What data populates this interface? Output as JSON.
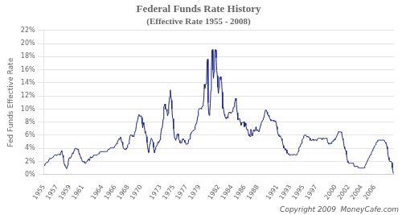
{
  "chart_data": {
    "type": "line",
    "title": "Federal Funds Rate History",
    "subtitle": "(Effective Rate 1955 - 2008)",
    "ylabel": "Fed Funds Effective Rate",
    "annotations": [
      "Copyright 2009  MoneyCafe.com"
    ],
    "color": "#1a237e",
    "grid": "y",
    "xlim": [
      1955,
      2009
    ],
    "xticks": [
      1955,
      1957,
      1959,
      1961,
      1964,
      1966,
      1968,
      1970,
      1973,
      1975,
      1977,
      1979,
      1982,
      1984,
      1986,
      1988,
      1991,
      1993,
      1995,
      1997,
      2000,
      2002,
      2004,
      2006
    ],
    "ylim": [
      0,
      22
    ],
    "yticks": [
      {
        "value": 0,
        "label": "0%"
      },
      {
        "value": 2,
        "label": "2%"
      },
      {
        "value": 4,
        "label": "4%"
      },
      {
        "value": 6,
        "label": "6%"
      },
      {
        "value": 8,
        "label": "8%"
      },
      {
        "value": 10,
        "label": "10%"
      },
      {
        "value": 12,
        "label": "12%"
      },
      {
        "value": 14,
        "label": "14%"
      },
      {
        "value": 16,
        "label": "16%"
      },
      {
        "value": 18,
        "label": "18%"
      },
      {
        "value": 20,
        "label": "20%"
      },
      {
        "value": 22,
        "label": "22%"
      }
    ],
    "x": [
      1955.0,
      1955.083,
      1955.167,
      1955.25,
      1955.333,
      1955.417,
      1955.5,
      1955.583,
      1955.667,
      1955.75,
      1955.833,
      1955.917,
      1956.0,
      1956.083,
      1956.167,
      1956.25,
      1956.333,
      1956.417,
      1956.5,
      1956.583,
      1956.667,
      1956.75,
      1956.833,
      1956.917,
      1957.0,
      1957.083,
      1957.167,
      1957.25,
      1957.333,
      1957.417,
      1957.5,
      1957.583,
      1957.667,
      1957.75,
      1957.833,
      1957.917,
      1958.0,
      1958.083,
      1958.167,
      1958.25,
      1958.333,
      1958.417,
      1958.5,
      1958.583,
      1958.667,
      1958.75,
      1958.833,
      1958.917,
      1959.0,
      1959.083,
      1959.167,
      1959.25,
      1959.333,
      1959.417,
      1959.5,
      1959.583,
      1959.667,
      1959.75,
      1959.833,
      1959.917,
      1960.0,
      1960.083,
      1960.167,
      1960.25,
      1960.333,
      1960.417,
      1960.5,
      1960.583,
      1960.667,
      1960.75,
      1960.833,
      1960.917,
      1961.0,
      1961.083,
      1961.167,
      1961.25,
      1961.333,
      1961.417,
      1961.5,
      1961.583,
      1961.667,
      1961.75,
      1961.833,
      1961.917,
      1962.0,
      1962.083,
      1962.167,
      1962.25,
      1962.333,
      1962.417,
      1962.5,
      1962.583,
      1962.667,
      1962.75,
      1962.833,
      1962.917,
      1963.0,
      1963.083,
      1963.167,
      1963.25,
      1963.333,
      1963.417,
      1963.5,
      1963.583,
      1963.667,
      1963.75,
      1963.833,
      1963.917,
      1964.0,
      1964.083,
      1964.167,
      1964.25,
      1964.333,
      1964.417,
      1964.5,
      1964.583,
      1964.667,
      1964.75,
      1964.833,
      1964.917,
      1965.0,
      1965.083,
      1965.167,
      1965.25,
      1965.333,
      1965.417,
      1965.5,
      1965.583,
      1965.667,
      1965.75,
      1965.833,
      1965.917,
      1966.0,
      1966.083,
      1966.167,
      1966.25,
      1966.333,
      1966.417,
      1966.5,
      1966.583,
      1966.667,
      1966.75,
      1966.833,
      1966.917,
      1967.0,
      1967.083,
      1967.167,
      1967.25,
      1967.333,
      1967.417,
      1967.5,
      1967.583,
      1967.667,
      1967.75,
      1967.833,
      1967.917,
      1968.0,
      1968.083,
      1968.167,
      1968.25,
      1968.333,
      1968.417,
      1968.5,
      1968.583,
      1968.667,
      1968.75,
      1968.833,
      1968.917,
      1969.0,
      1969.083,
      1969.167,
      1969.25,
      1969.333,
      1969.417,
      1969.5,
      1969.583,
      1969.667,
      1969.75,
      1969.833,
      1969.917,
      1970.0,
      1970.083,
      1970.167,
      1970.25,
      1970.333,
      1970.417,
      1970.5,
      1970.583,
      1970.667,
      1970.75,
      1970.833,
      1970.917,
      1971.0,
      1971.083,
      1971.167,
      1971.25,
      1971.333,
      1971.417,
      1971.5,
      1971.583,
      1971.667,
      1971.75,
      1971.833,
      1971.917,
      1972.0,
      1972.083,
      1972.167,
      1972.25,
      1972.333,
      1972.417,
      1972.5,
      1972.583,
      1972.667,
      1972.75,
      1972.833,
      1972.917,
      1973.0,
      1973.083,
      1973.167,
      1973.25,
      1973.333,
      1973.417,
      1973.5,
      1973.583,
      1973.667,
      1973.75,
      1973.833,
      1973.917,
      1974.0,
      1974.083,
      1974.167,
      1974.25,
      1974.333,
      1974.417,
      1974.5,
      1974.583,
      1974.667,
      1974.75,
      1974.833,
      1974.917,
      1975.0,
      1975.083,
      1975.167,
      1975.25,
      1975.333,
      1975.417,
      1975.5,
      1975.583,
      1975.667,
      1975.75,
      1975.833,
      1975.917,
      1976.0,
      1976.083,
      1976.167,
      1976.25,
      1976.333,
      1976.417,
      1976.5,
      1976.583,
      1976.667,
      1976.75,
      1976.833,
      1976.917,
      1977.0,
      1977.083,
      1977.167,
      1977.25,
      1977.333,
      1977.417,
      1977.5,
      1977.583,
      1977.667,
      1977.75,
      1977.833,
      1977.917,
      1978.0,
      1978.083,
      1978.167,
      1978.25,
      1978.333,
      1978.417,
      1978.5,
      1978.583,
      1978.667,
      1978.75,
      1978.833,
      1978.917,
      1979.0,
      1979.083,
      1979.167,
      1979.25,
      1979.333,
      1979.417,
      1979.5,
      1979.583,
      1979.667,
      1979.75,
      1979.833,
      1979.917,
      1980.0,
      1980.083,
      1980.167,
      1980.25,
      1980.333,
      1980.417,
      1980.5,
      1980.583,
      1980.667,
      1980.75,
      1980.833,
      1980.917,
      1981.0,
      1981.083,
      1981.167,
      1981.25,
      1981.333,
      1981.417,
      1981.5,
      1981.583,
      1981.667,
      1981.75,
      1981.833,
      1981.917,
      1982.0,
      1982.083,
      1982.167,
      1982.25,
      1982.333,
      1982.417,
      1982.5,
      1982.583,
      1982.667,
      1982.75,
      1982.833,
      1982.917,
      1983.0,
      1983.083,
      1983.167,
      1983.25,
      1983.333,
      1983.417,
      1983.5,
      1983.583,
      1983.667,
      1983.75,
      1983.833,
      1983.917,
      1984.0,
      1984.083,
      1984.167,
      1984.25,
      1984.333,
      1984.417,
      1984.5,
      1984.583,
      1984.667,
      1984.75,
      1984.833,
      1984.917,
      1985.0,
      1985.083,
      1985.167,
      1985.25,
      1985.333,
      1985.417,
      1985.5,
      1985.583,
      1985.667,
      1985.75,
      1985.833,
      1985.917,
      1986.0,
      1986.083,
      1986.167,
      1986.25,
      1986.333,
      1986.417,
      1986.5,
      1986.583,
      1986.667,
      1986.75,
      1986.833,
      1986.917,
      1987.0,
      1987.083,
      1987.167,
      1987.25,
      1987.333,
      1987.417,
      1987.5,
      1987.583,
      1987.667,
      1987.75,
      1987.833,
      1987.917,
      1988.0,
      1988.083,
      1988.167,
      1988.25,
      1988.333,
      1988.417,
      1988.5,
      1988.583,
      1988.667,
      1988.75,
      1988.833,
      1988.917,
      1989.0,
      1989.083,
      1989.167,
      1989.25,
      1989.333,
      1989.417,
      1989.5,
      1989.583,
      1989.667,
      1989.75,
      1989.833,
      1989.917,
      1990.0,
      1990.083,
      1990.167,
      1990.25,
      1990.333,
      1990.417,
      1990.5,
      1990.583,
      1990.667,
      1990.75,
      1990.833,
      1990.917,
      1991.0,
      1991.083,
      1991.167,
      1991.25,
      1991.333,
      1991.417,
      1991.5,
      1991.583,
      1991.667,
      1991.75,
      1991.833,
      1991.917,
      1992.0,
      1992.083,
      1992.167,
      1992.25,
      1992.333,
      1992.417,
      1992.5,
      1992.583,
      1992.667,
      1992.75,
      1992.833,
      1992.917,
      1993.0,
      1993.083,
      1993.167,
      1993.25,
      1993.333,
      1993.417,
      1993.5,
      1993.583,
      1993.667,
      1993.75,
      1993.833,
      1993.917,
      1994.0,
      1994.083,
      1994.167,
      1994.25,
      1994.333,
      1994.417,
      1994.5,
      1994.583,
      1994.667,
      1994.75,
      1994.833,
      1994.917,
      1995.0,
      1995.083,
      1995.167,
      1995.25,
      1995.333,
      1995.417,
      1995.5,
      1995.583,
      1995.667,
      1995.75,
      1995.833,
      1995.917,
      1996.0,
      1996.083,
      1996.167,
      1996.25,
      1996.333,
      1996.417,
      1996.5,
      1996.583,
      1996.667,
      1996.75,
      1996.833,
      1996.917,
      1997.0,
      1997.083,
      1997.167,
      1997.25,
      1997.333,
      1997.417,
      1997.5,
      1997.583,
      1997.667,
      1997.75,
      1997.833,
      1997.917,
      1998.0,
      1998.083,
      1998.167,
      1998.25,
      1998.333,
      1998.417,
      1998.5,
      1998.583,
      1998.667,
      1998.75,
      1998.833,
      1998.917,
      1999.0,
      1999.083,
      1999.167,
      1999.25,
      1999.333,
      1999.417,
      1999.5,
      1999.583,
      1999.667,
      1999.75,
      1999.833,
      1999.917,
      2000.0,
      2000.083,
      2000.167,
      2000.25,
      2000.333,
      2000.417,
      2000.5,
      2000.583,
      2000.667,
      2000.75,
      2000.833,
      2000.917,
      2001.0,
      2001.083,
      2001.167,
      2001.25,
      2001.333,
      2001.417,
      2001.5,
      2001.583,
      2001.667,
      2001.75,
      2001.833,
      2001.917,
      2002.0,
      2002.083,
      2002.167,
      2002.25,
      2002.333,
      2002.417,
      2002.5,
      2002.583,
      2002.667,
      2002.75,
      2002.833,
      2002.917,
      2003.0,
      2003.083,
      2003.167,
      2003.25,
      2003.333,
      2003.417,
      2003.5,
      2003.583,
      2003.667,
      2003.75,
      2003.833,
      2003.917,
      2004.0,
      2004.083,
      2004.167,
      2004.25,
      2004.333,
      2004.417,
      2004.5,
      2004.583,
      2004.667,
      2004.75,
      2004.833,
      2004.917,
      2005.0,
      2005.083,
      2005.167,
      2005.25,
      2005.333,
      2005.417,
      2005.5,
      2005.583,
      2005.667,
      2005.75,
      2005.833,
      2005.917,
      2006.0,
      2006.083,
      2006.167,
      2006.25,
      2006.333,
      2006.417,
      2006.5,
      2006.583,
      2006.667,
      2006.75,
      2006.833,
      2006.917,
      2007.0,
      2007.083,
      2007.167,
      2007.25,
      2007.333,
      2007.417,
      2007.5,
      2007.583,
      2007.667,
      2007.75,
      2007.833,
      2007.917,
      2008.0,
      2008.083,
      2008.167,
      2008.25,
      2008.333,
      2008.417,
      2008.5,
      2008.583,
      2008.667,
      2008.75,
      2008.833,
      2008.917
    ],
    "values": [
      1.28,
      1.4,
      1.57,
      1.73,
      1.79,
      1.83,
      1.86,
      1.9,
      2.0,
      2.18,
      2.35,
      2.5,
      2.44,
      2.45,
      2.5,
      2.52,
      2.58,
      2.68,
      2.78,
      2.91,
      3.0,
      3.04,
      3.0,
      2.92,
      3.0,
      3.02,
      3.07,
      3.08,
      3.1,
      3.11,
      3.0,
      3.25,
      3.5,
      3.66,
      3.27,
      2.92,
      2.61,
      1.89,
      1.52,
      1.38,
      1.2,
      1.05,
      0.92,
      1.11,
      1.44,
      1.89,
      2.33,
      2.57,
      2.5,
      2.48,
      2.68,
      2.85,
      3.04,
      3.31,
      3.2,
      3.44,
      3.65,
      3.97,
      3.99,
      4.0,
      3.99,
      3.97,
      3.8,
      3.92,
      3.85,
      3.22,
      3.1,
      2.92,
      2.6,
      2.45,
      2.35,
      1.98,
      1.96,
      2.0,
      2.0,
      1.81,
      1.74,
      1.73,
      1.87,
      1.96,
      2.0,
      2.18,
      2.36,
      2.39,
      2.15,
      2.37,
      2.72,
      2.68,
      2.54,
      2.68,
      2.65,
      2.69,
      2.97,
      2.97,
      2.98,
      3.0,
      2.92,
      2.98,
      3.0,
      3.0,
      3.0,
      3.18,
      3.17,
      3.43,
      3.47,
      3.5,
      3.5,
      3.5,
      3.48,
      3.48,
      3.5,
      3.5,
      3.5,
      3.5,
      3.5,
      3.5,
      3.5,
      3.5,
      3.5,
      3.85,
      3.87,
      3.84,
      4.0,
      4.09,
      4.07,
      4.05,
      4.09,
      4.12,
      4.12,
      4.07,
      4.09,
      4.32,
      4.42,
      4.6,
      4.72,
      4.67,
      4.9,
      5.17,
      5.3,
      5.53,
      5.4,
      5.47,
      5.76,
      5.4,
      4.94,
      4.96,
      4.5,
      4.05,
      3.94,
      3.98,
      3.79,
      3.86,
      3.99,
      3.88,
      4.14,
      4.51,
      4.61,
      4.71,
      5.06,
      5.76,
      6.02,
      6.07,
      6.03,
      6.01,
      5.78,
      5.91,
      5.82,
      6.02,
      6.3,
      6.65,
      6.79,
      7.41,
      8.01,
      8.2,
      8.45,
      8.98,
      9.19,
      9.0,
      8.85,
      8.97,
      8.98,
      8.73,
      7.76,
      7.13,
      7.94,
      7.61,
      7.21,
      6.62,
      6.29,
      6.18,
      5.78,
      4.9,
      4.14,
      3.72,
      3.37,
      4.16,
      4.63,
      4.91,
      5.31,
      5.55,
      5.55,
      5.2,
      4.91,
      4.14,
      3.5,
      3.29,
      3.83,
      4.17,
      4.27,
      4.46,
      4.55,
      4.98,
      4.87,
      5.05,
      5.06,
      5.33,
      5.94,
      6.58,
      7.09,
      7.12,
      7.84,
      8.49,
      10.4,
      10.5,
      10.78,
      10.01,
      10.03,
      9.95,
      9.65,
      8.97,
      9.35,
      10.51,
      11.31,
      11.93,
      12.92,
      12.01,
      11.34,
      10.06,
      8.68,
      8.53,
      6.97,
      6.24,
      5.54,
      5.49,
      5.22,
      5.55,
      6.1,
      6.14,
      6.24,
      5.82,
      5.32,
      5.2,
      4.87,
      4.77,
      4.84,
      4.82,
      5.29,
      5.48,
      5.31,
      5.29,
      5.25,
      4.9,
      4.93,
      4.65,
      4.61,
      4.68,
      4.69,
      4.73,
      5.35,
      5.39,
      5.42,
      6.14,
      6.14,
      6.47,
      6.51,
      6.56,
      6.7,
      6.78,
      6.79,
      6.89,
      7.36,
      7.6,
      7.81,
      8.04,
      8.45,
      8.96,
      9.76,
      10.03,
      10.07,
      10.06,
      10.09,
      10.01,
      10.24,
      10.29,
      10.47,
      10.94,
      11.43,
      13.77,
      13.18,
      13.78,
      13.82,
      14.13,
      17.19,
      17.61,
      10.98,
      9.47,
      9.03,
      9.61,
      10.87,
      12.81,
      15.85,
      18.9,
      19.08,
      15.93,
      14.7,
      15.72,
      18.52,
      19.1,
      19.04,
      17.82,
      15.87,
      15.08,
      13.31,
      12.37,
      13.22,
      14.78,
      14.68,
      14.94,
      14.45,
      14.15,
      12.59,
      10.12,
      10.31,
      9.71,
      9.2,
      8.95,
      8.68,
      8.51,
      8.77,
      8.8,
      8.63,
      9.09,
      9.37,
      9.56,
      9.45,
      9.48,
      9.34,
      9.47,
      9.56,
      9.59,
      9.91,
      10.29,
      10.32,
      11.06,
      11.23,
      11.64,
      11.3,
      9.99,
      9.43,
      8.38,
      8.35,
      8.5,
      8.58,
      8.27,
      7.97,
      7.53,
      7.88,
      7.9,
      7.92,
      7.99,
      8.05,
      7.29,
      7.83,
      7.86,
      7.48,
      6.99,
      6.85,
      6.92,
      6.56,
      6.17,
      5.89,
      5.85,
      5.82,
      6.92,
      6.43,
      6.1,
      5.94,
      6.37,
      6.85,
      6.73,
      6.58,
      6.73,
      7.22,
      7.29,
      6.69,
      6.77,
      6.83,
      6.58,
      6.58,
      6.87,
      7.09,
      7.51,
      7.75,
      8.01,
      8.19,
      8.3,
      8.35,
      8.76,
      9.12,
      9.36,
      9.85,
      9.84,
      9.81,
      9.53,
      9.24,
      9.02,
      9.02,
      8.84,
      8.55,
      8.45,
      8.23,
      8.24,
      8.28,
      8.26,
      8.18,
      8.29,
      8.15,
      8.13,
      8.2,
      8.11,
      7.81,
      7.31,
      6.91,
      6.25,
      6.12,
      5.91,
      5.78,
      5.9,
      5.82,
      5.66,
      5.45,
      5.21,
      4.81,
      4.43,
      4.03,
      4.06,
      3.98,
      3.73,
      3.82,
      3.76,
      3.25,
      3.3,
      3.22,
      3.1,
      3.09,
      2.92,
      3.02,
      3.03,
      3.07,
      2.96,
      3.0,
      3.04,
      3.06,
      3.03,
      3.09,
      2.99,
      3.02,
      2.96,
      3.05,
      3.25,
      3.34,
      3.56,
      4.01,
      4.25,
      4.26,
      4.47,
      4.73,
      4.76,
      5.29,
      5.45,
      5.53,
      5.92,
      5.98,
      6.05,
      6.0,
      6.0,
      5.85,
      5.74,
      5.8,
      5.76,
      5.8,
      5.6,
      5.56,
      5.22,
      5.31,
      5.22,
      5.25,
      5.27,
      5.4,
      5.22,
      5.3,
      5.24,
      5.31,
      5.29,
      5.25,
      5.19,
      5.39,
      5.51,
      5.5,
      5.56,
      5.52,
      5.54,
      5.54,
      5.5,
      5.52,
      5.3,
      5.56,
      5.51,
      5.49,
      5.45,
      5.49,
      5.56,
      5.54,
      5.55,
      5.51,
      5.07,
      4.83,
      4.68,
      4.63,
      4.76,
      4.81,
      4.74,
      4.74,
      5.0,
      5.07,
      5.07,
      5.22,
      5.2,
      5.42,
      5.3,
      5.45,
      5.73,
      5.85,
      6.02,
      6.27,
      6.53,
      6.54,
      6.5,
      6.52,
      6.51,
      6.51,
      6.4,
      5.98,
      5.49,
      5.31,
      4.8,
      4.21,
      3.97,
      3.77,
      3.65,
      3.07,
      2.49,
      2.09,
      1.82,
      1.73,
      1.75,
      1.73,
      1.75,
      1.75,
      1.75,
      1.73,
      1.74,
      1.75,
      1.75,
      1.34,
      1.24,
      1.24,
      1.26,
      1.25,
      1.26,
      1.26,
      1.22,
      1.01,
      1.03,
      1.01,
      1.01,
      1.0,
      0.98,
      1.0,
      1.01,
      1.0,
      1.0,
      1.0,
      1.03,
      1.26,
      1.43,
      1.61,
      1.76,
      1.95,
      2.16,
      2.28,
      2.5,
      2.63,
      2.79,
      3.0,
      3.04,
      3.26,
      3.5,
      3.62,
      3.78,
      4.0,
      4.16,
      4.29,
      4.49,
      4.59,
      4.79,
      5.0,
      5.0,
      5.24,
      5.25,
      5.25,
      5.25,
      5.25,
      5.24,
      5.26,
      5.26,
      5.26,
      5.25,
      5.25,
      5.25,
      5.26,
      5.02,
      4.94,
      4.76,
      4.65,
      4.24,
      3.94,
      2.98,
      2.61,
      2.28,
      2.0,
      2.0,
      2.01,
      2.0,
      1.81,
      1.01,
      0.54,
      0.16
    ]
  }
}
